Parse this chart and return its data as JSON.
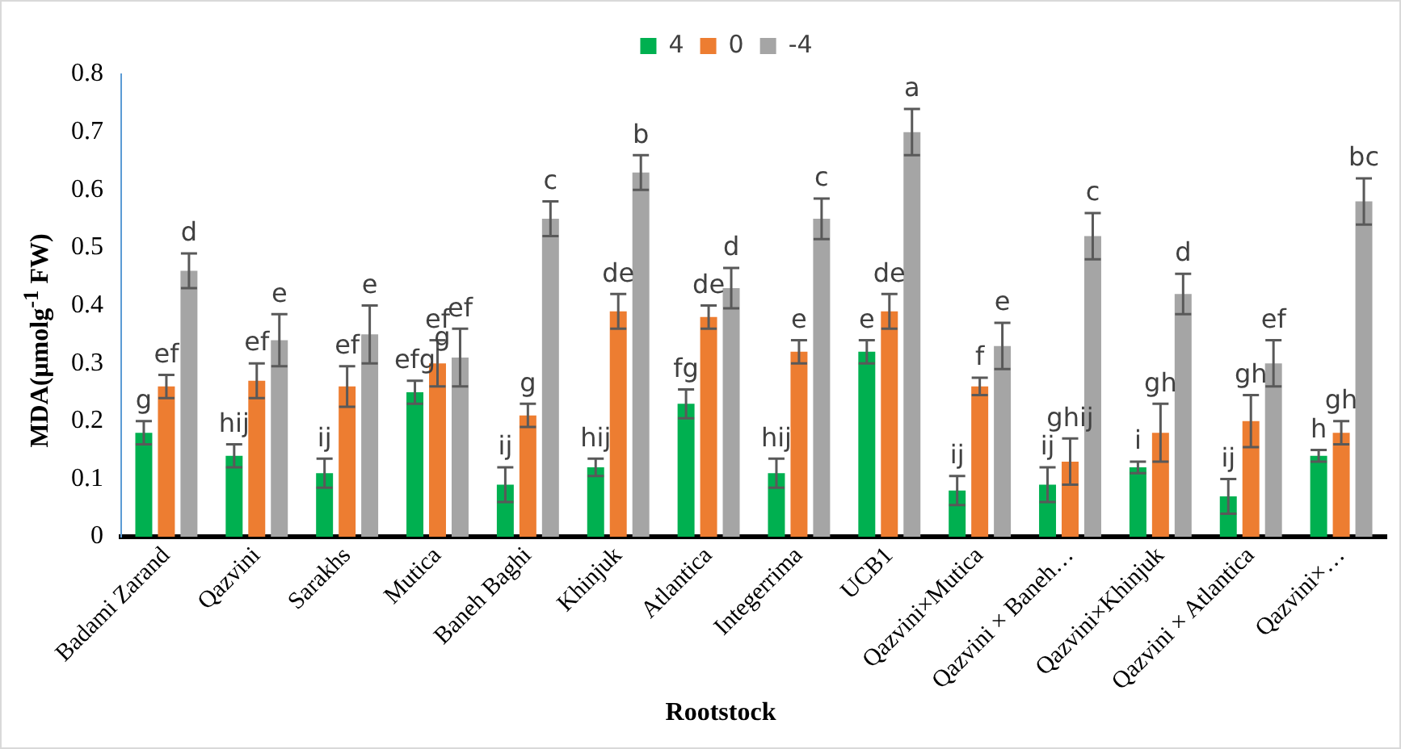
{
  "chart_data": {
    "type": "bar",
    "xlabel": "Rootstock",
    "ylabel": "MDA(μmolg$^{-1}$ FW)",
    "categories": [
      "Badami Zarand",
      "Qazvini",
      "Sarakhs",
      "Mutica",
      "Baneh Baghi",
      "Khinjuk",
      "Atlantica",
      "Integerrima",
      "UCB1",
      "Qazvini×Mutica",
      "Qazvini × Baneh…",
      "Qazvini×Khinjuk",
      "Qazvini × Atlantica",
      "Qazvini×…"
    ],
    "series": [
      {
        "name": "4",
        "color": "#00b050",
        "values": [
          0.18,
          0.14,
          0.11,
          0.25,
          0.09,
          0.12,
          0.23,
          0.11,
          0.32,
          0.08,
          0.09,
          0.12,
          0.07,
          0.14
        ],
        "errors": [
          0.02,
          0.02,
          0.025,
          0.02,
          0.03,
          0.015,
          0.025,
          0.025,
          0.02,
          0.025,
          0.03,
          0.01,
          0.03,
          0.01
        ],
        "value_labels": [
          "g",
          "hij",
          "ij",
          "efg",
          "ij",
          "hij",
          "fg",
          "hij",
          "e",
          "ij",
          "ij",
          "i",
          "ij",
          "h"
        ]
      },
      {
        "name": "0",
        "color": "#ed7d31",
        "values": [
          0.26,
          0.27,
          0.26,
          0.3,
          0.21,
          0.39,
          0.38,
          0.32,
          0.39,
          0.26,
          0.13,
          0.18,
          0.2,
          0.18
        ],
        "errors": [
          0.02,
          0.03,
          0.035,
          0.04,
          0.02,
          0.03,
          0.02,
          0.02,
          0.03,
          0.015,
          0.04,
          0.05,
          0.045,
          0.02
        ],
        "value_labels": [
          "ef",
          "ef",
          "ef",
          "ef",
          "g",
          "de",
          "de",
          "e",
          "de",
          "f",
          "ghij",
          "gh",
          "gh",
          "gh"
        ]
      },
      {
        "name": "-4",
        "color": "#a5a5a5",
        "values": [
          0.46,
          0.34,
          0.35,
          0.31,
          0.55,
          0.63,
          0.43,
          0.55,
          0.7,
          0.33,
          0.52,
          0.42,
          0.3,
          0.58
        ],
        "errors": [
          0.03,
          0.045,
          0.05,
          0.05,
          0.03,
          0.03,
          0.035,
          0.035,
          0.04,
          0.04,
          0.04,
          0.035,
          0.04,
          0.04
        ],
        "value_labels": [
          "d",
          "e",
          "e",
          "ef",
          "c",
          "b",
          "d",
          "c",
          "a",
          "e",
          "c",
          "d",
          "ef",
          "bc"
        ]
      }
    ],
    "annotations": [
      {
        "text": "g",
        "x": "Mutica",
        "y": 0.32
      }
    ],
    "ylim": [
      0,
      0.8
    ],
    "yticks": [
      0,
      0.1,
      0.2,
      0.3,
      0.4,
      0.5,
      0.6,
      0.7,
      0.8
    ],
    "grid": false,
    "legend": "top"
  }
}
